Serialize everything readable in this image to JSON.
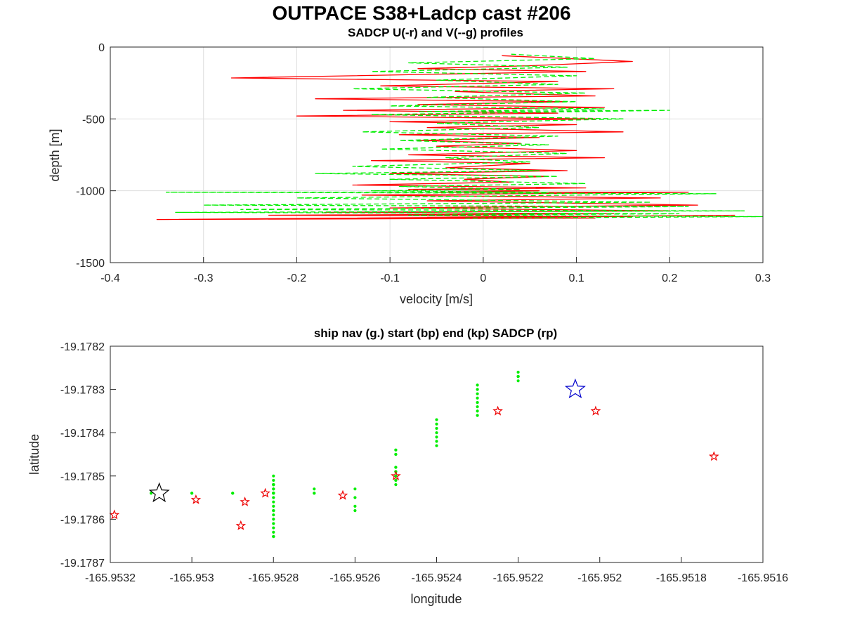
{
  "figure": {
    "title": "OUTPACE S38+Ladcp cast #206"
  },
  "chart_data": [
    {
      "type": "line",
      "title": "SADCP U(-r) and V(--g) profiles",
      "xlabel": "velocity [m/s]",
      "ylabel": "depth [m]",
      "xlim": [
        -0.4,
        0.3
      ],
      "ylim": [
        -1500,
        0
      ],
      "xticks": [
        -0.4,
        -0.3,
        -0.2,
        -0.1,
        0,
        0.1,
        0.2,
        0.3
      ],
      "yticks": [
        -1500,
        -1000,
        -500,
        0
      ],
      "xtick_labels": [
        "-0.4",
        "-0.3",
        "-0.2",
        "-0.1",
        "0",
        "0.1",
        "0.2",
        "0.3"
      ],
      "ytick_labels": [
        "-1500",
        "-1000",
        "-500",
        "0"
      ],
      "grid": true,
      "series": [
        {
          "color": "#ff0000",
          "style": "solid",
          "x": [
            0.02,
            0.16,
            0.05,
            -0.07,
            0.11,
            -0.27,
            0.08,
            -0.11,
            0.14,
            -0.03,
            0.12,
            -0.18,
            0.09,
            -0.07,
            0.13,
            -0.15,
            0.08,
            -0.2,
            0.12,
            -0.1,
            0.1,
            -0.06,
            0.15,
            -0.09,
            0.06,
            -0.07,
            0.04,
            -0.05,
            0.1,
            -0.08,
            0.13,
            -0.12,
            0.05,
            -0.04,
            0.09,
            -0.1,
            0.07,
            -0.02,
            0.03,
            -0.14,
            0.11,
            -0.08,
            0.06,
            -0.05,
            0.22,
            -0.13,
            0.19,
            -0.06,
            0.23,
            -0.1,
            0.2,
            -0.17,
            0.14,
            -0.23,
            0.16,
            -0.06,
            0.12,
            -0.35,
            0.27
          ],
          "y": [
            -60,
            -100,
            -130,
            -150,
            -170,
            -215,
            -240,
            -270,
            -290,
            -310,
            -340,
            -360,
            -380,
            -400,
            -420,
            -440,
            -460,
            -480,
            -500,
            -520,
            -540,
            -560,
            -590,
            -610,
            -630,
            -650,
            -670,
            -690,
            -720,
            -750,
            -770,
            -790,
            -810,
            -840,
            -860,
            -880,
            -900,
            -920,
            -940,
            -960,
            -980,
            -990,
            -1000,
            -1010,
            -1010,
            -1030,
            -1050,
            -1070,
            -1100,
            -1120,
            -1140,
            -1150,
            -1160,
            -1170,
            -1180,
            -1185,
            -1190,
            -1200,
            -1170
          ]
        },
        {
          "color": "#00ee00",
          "style": "dashed",
          "x": [
            0.03,
            0.12,
            -0.08,
            0.09,
            -0.12,
            0.1,
            -0.05,
            0.08,
            -0.14,
            0.11,
            -0.06,
            0.1,
            -0.1,
            0.13,
            -0.07,
            0.2,
            -0.12,
            0.15,
            -0.05,
            0.06,
            -0.13,
            0.08,
            -0.09,
            0.07,
            -0.11,
            0.09,
            -0.04,
            0.05,
            -0.14,
            0.06,
            -0.18,
            0.08,
            -0.1,
            0.11,
            -0.09,
            0.04,
            -0.12,
            0.07,
            -0.34,
            0.25,
            -0.2,
            0.18,
            -0.3,
            0.22,
            -0.26,
            0.28,
            -0.33,
            0.21,
            -0.08,
            0.3,
            -0.02
          ],
          "y": [
            -50,
            -80,
            -110,
            -140,
            -170,
            -200,
            -230,
            -260,
            -290,
            -320,
            -350,
            -380,
            -410,
            -430,
            -450,
            -440,
            -470,
            -500,
            -530,
            -560,
            -590,
            -620,
            -650,
            -680,
            -710,
            -740,
            -770,
            -800,
            -830,
            -860,
            -880,
            -900,
            -920,
            -950,
            -970,
            -990,
            -1000,
            -1010,
            -1010,
            -1020,
            -1050,
            -1080,
            -1100,
            -1110,
            -1130,
            -1140,
            -1150,
            -1160,
            -1170,
            -1180,
            -1190
          ]
        }
      ]
    },
    {
      "type": "scatter",
      "title": "ship nav (g.) start (bp) end (kp) SADCP (rp)",
      "xlabel": "longitude",
      "ylabel": "latitude",
      "xlim": [
        -165.9532,
        -165.9516
      ],
      "ylim": [
        -19.1787,
        -19.1782
      ],
      "xticks": [
        -165.9532,
        -165.953,
        -165.9528,
        -165.9526,
        -165.9524,
        -165.9522,
        -165.952,
        -165.9518,
        -165.9516
      ],
      "yticks": [
        -19.1787,
        -19.1786,
        -19.1785,
        -19.1784,
        -19.1783,
        -19.1782
      ],
      "xtick_labels": [
        "-165.9532",
        "-165.953",
        "-165.9528",
        "-165.9526",
        "-165.9524",
        "-165.9522",
        "-165.952",
        "-165.9518",
        "-165.9516"
      ],
      "ytick_labels": [
        "-19.1787",
        "-19.1786",
        "-19.1785",
        "-19.1784",
        "-19.1783",
        "-19.1782"
      ],
      "grid": false,
      "ship_nav": {
        "color": "#00ee00",
        "x": [
          -165.953,
          -165.9531,
          -165.953,
          -165.9529,
          -165.9529,
          -165.9528,
          -165.9528,
          -165.9528,
          -165.9528,
          -165.9528,
          -165.9528,
          -165.9527,
          -165.9528,
          -165.9528,
          -165.9528,
          -165.9528,
          -165.9528,
          -165.9528,
          -165.9528,
          -165.9528,
          -165.9528,
          -165.9528,
          -165.9528,
          -165.9528,
          -165.9528,
          -165.9528,
          -165.9528,
          -165.9528,
          -165.9528,
          -165.9528,
          -165.9528,
          -165.9528,
          -165.9528,
          -165.9527,
          -165.9527,
          -165.9528,
          -165.9528,
          -165.9528,
          -165.9528,
          -165.9528,
          -165.9526,
          -165.9526,
          -165.9526,
          -165.9526,
          -165.9525,
          -165.9525,
          -165.9525,
          -165.9525,
          -165.9525,
          -165.9525,
          -165.9525,
          -165.9525,
          -165.9525,
          -165.9525,
          -165.9525,
          -165.9525,
          -165.9525,
          -165.9524,
          -165.9524,
          -165.9524,
          -165.9524,
          -165.9524,
          -165.9524,
          -165.9524,
          -165.9523,
          -165.9523,
          -165.9523,
          -165.9523,
          -165.9523,
          -165.9523,
          -165.9523,
          -165.9523,
          -165.9522,
          -165.9522,
          -165.9522,
          -165.9522,
          -165.9522
        ],
        "y": [
          -19.17854,
          -19.17854,
          -19.17854,
          -19.17854,
          -19.17854,
          -19.17854,
          -19.17854,
          -19.17854,
          -19.17854,
          -19.17854,
          -19.17854,
          -19.17854,
          -19.1785,
          -19.17851,
          -19.17852,
          -19.17853,
          -19.17855,
          -19.17856,
          -19.17857,
          -19.17858,
          -19.17859,
          -19.1786,
          -19.17861,
          -19.17862,
          -19.17863,
          -19.17864,
          -19.17864,
          -19.17864,
          -19.17852,
          -19.17852,
          -19.17852,
          -19.17852,
          -19.17853,
          -19.17853,
          -19.17854,
          -19.17854,
          -19.17854,
          -19.17854,
          -19.17854,
          -19.17858,
          -19.17858,
          -19.17857,
          -19.17855,
          -19.17853,
          -19.17852,
          -19.17851,
          -19.1785,
          -19.17849,
          -19.17848,
          -19.17848,
          -19.17849,
          -19.1785,
          -19.17851,
          -19.17845,
          -19.17845,
          -19.17844,
          -19.17844,
          -19.17843,
          -19.17842,
          -19.17841,
          -19.1784,
          -19.17839,
          -19.17838,
          -19.17837,
          -19.17836,
          -19.17835,
          -19.17834,
          -19.17833,
          -19.17832,
          -19.17831,
          -19.1783,
          -19.17829,
          -19.17826,
          -19.17827,
          -19.17827,
          -19.17827,
          -19.17828
        ]
      },
      "start": {
        "color": "#0000cc",
        "x": -165.95206,
        "y": -19.1783
      },
      "end": {
        "color": "#000000",
        "x": -165.95308,
        "y": -19.17854
      },
      "sadcp": {
        "color": "#ee0000",
        "x": [
          -165.95319,
          -165.95299,
          -165.95288,
          -165.95287,
          -165.95282,
          -165.95263,
          -165.9525,
          -165.95225,
          -165.95201,
          -165.95172
        ],
        "y": [
          -19.17859,
          -19.178555,
          -19.178615,
          -19.17856,
          -19.17854,
          -19.178545,
          -19.1785,
          -19.17835,
          -19.17835,
          -19.178455
        ]
      }
    }
  ]
}
